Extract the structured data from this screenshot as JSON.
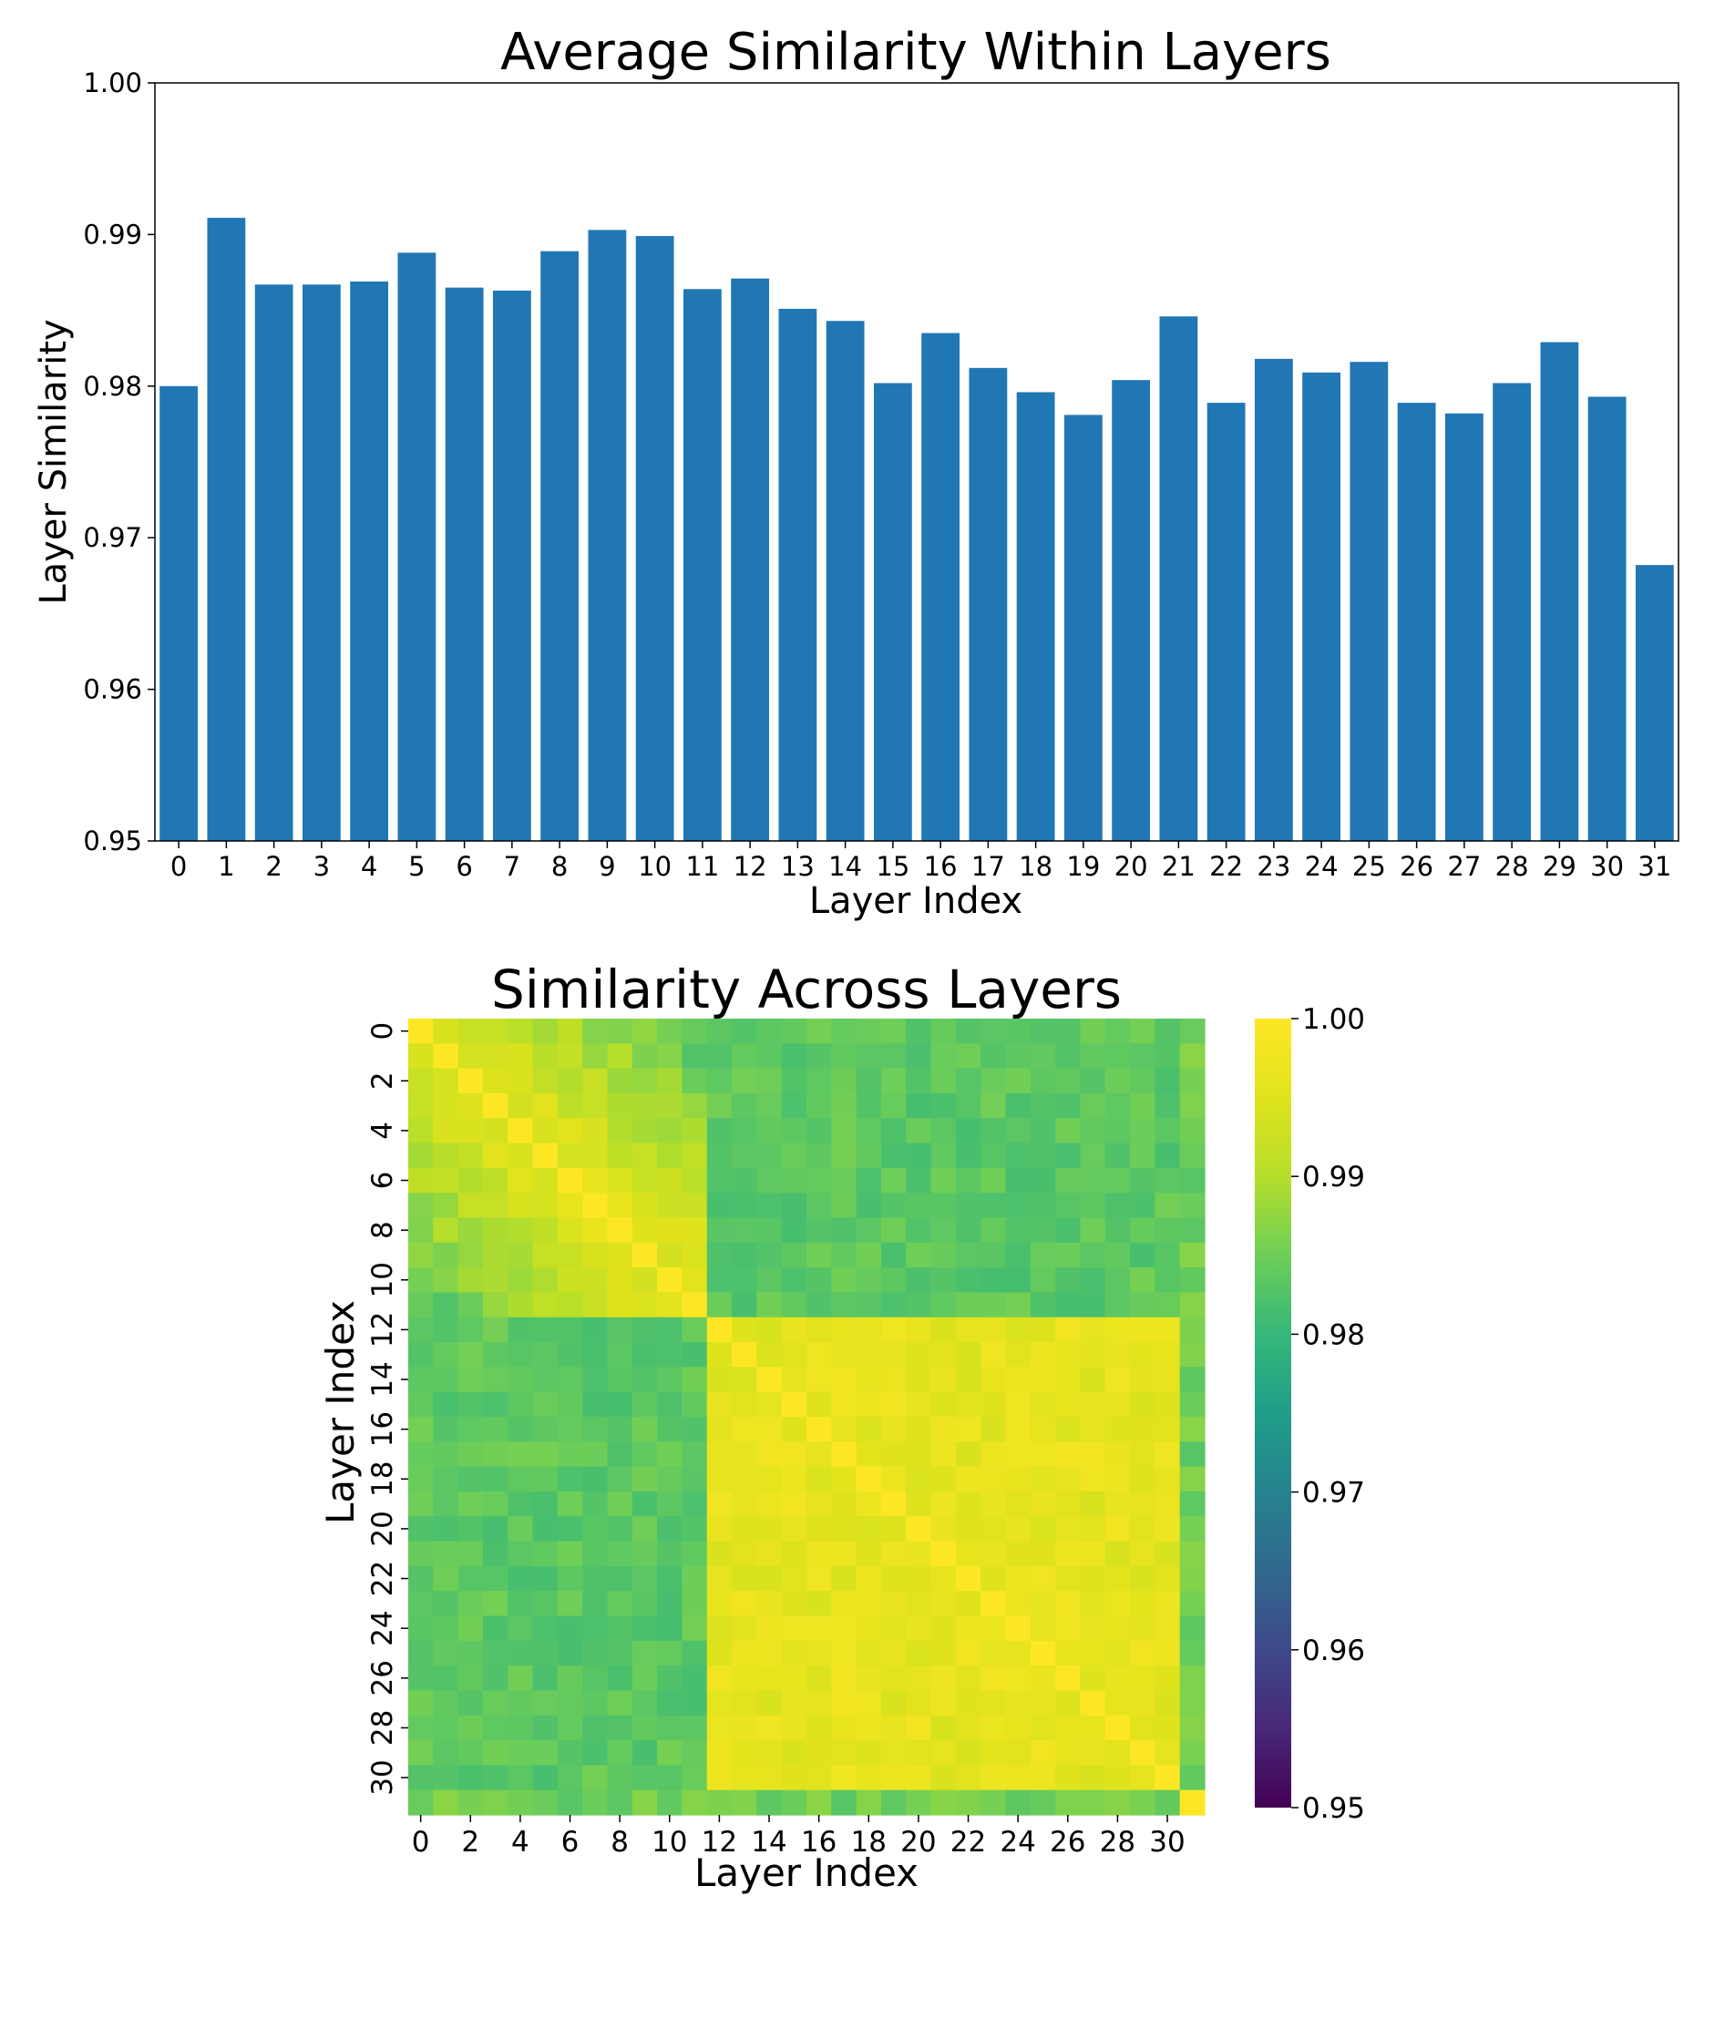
{
  "chart_data": [
    {
      "type": "bar",
      "title": "Average Similarity Within Layers",
      "xlabel": "Layer Index",
      "ylabel": "Layer Similarity",
      "ylim": [
        0.95,
        1.0
      ],
      "yticks": [
        "0.95",
        "0.96",
        "0.97",
        "0.98",
        "0.99",
        "1.00"
      ],
      "categories": [
        "0",
        "1",
        "2",
        "3",
        "4",
        "5",
        "6",
        "7",
        "8",
        "9",
        "10",
        "11",
        "12",
        "13",
        "14",
        "15",
        "16",
        "17",
        "18",
        "19",
        "20",
        "21",
        "22",
        "23",
        "24",
        "25",
        "26",
        "27",
        "28",
        "29",
        "30",
        "31"
      ],
      "values": [
        0.98,
        0.9911,
        0.9867,
        0.9867,
        0.9869,
        0.9888,
        0.9865,
        0.9863,
        0.9889,
        0.9903,
        0.9899,
        0.9864,
        0.9871,
        0.9851,
        0.9843,
        0.9802,
        0.9835,
        0.9812,
        0.9796,
        0.9781,
        0.9804,
        0.9846,
        0.9789,
        0.9818,
        0.9809,
        0.9816,
        0.9789,
        0.9782,
        0.9802,
        0.9829,
        0.9793,
        0.9682
      ],
      "color": "#2077b4",
      "grid": false,
      "legend": "none"
    },
    {
      "type": "heatmap",
      "title": "Similarity Across Layers",
      "xlabel": "Layer Index",
      "ylabel": "Layer Index",
      "size": 32,
      "tick_labels": [
        "0",
        "2",
        "4",
        "6",
        "8",
        "10",
        "12",
        "14",
        "16",
        "18",
        "20",
        "22",
        "24",
        "26",
        "28",
        "30"
      ],
      "colormap": "viridis",
      "vmin": 0.95,
      "vmax": 1.0,
      "colorbar_ticks": [
        "0.95",
        "0.96",
        "0.97",
        "0.98",
        "0.99",
        "1.00"
      ],
      "early_block_end": 11,
      "similarity_levels": {
        "diagonal": 1.0,
        "early_within": 0.9965,
        "early_late_cross": 0.9835,
        "late_within": 0.996,
        "layer_31_cross": 0.985
      }
    }
  ]
}
